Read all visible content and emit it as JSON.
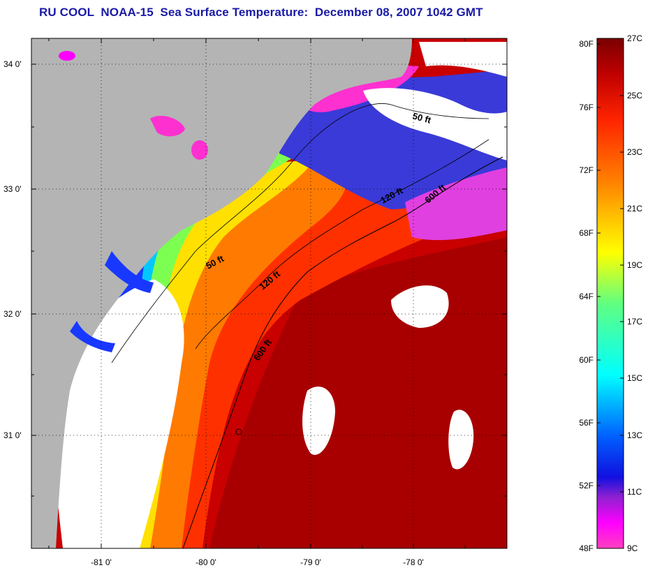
{
  "title": "RU COOL  NOAA-15  Sea Surface Temperature:  December 08, 2007 1042 GMT",
  "map": {
    "lon_labels": [
      "-81 0'",
      "-80 0'",
      "-79 0'",
      "-78 0'"
    ],
    "lat_labels": [
      "34 0'",
      "33 0'",
      "32 0'",
      "31 0'"
    ],
    "contours": [
      "50 ft",
      "120 ft",
      "600 ft",
      "50 ft",
      "120 ft",
      "600 ft"
    ],
    "land_color": "#b4b4b4",
    "cloud_color": "#ffffff"
  },
  "colorbar": {
    "f_labels": [
      "80F",
      "76F",
      "72F",
      "68F",
      "64F",
      "60F",
      "56F",
      "52F",
      "48F"
    ],
    "c_labels": [
      "27C",
      "25C",
      "23C",
      "21C",
      "19C",
      "17C",
      "15C",
      "13C",
      "11C",
      "9C"
    ],
    "colors": [
      "#7a0000",
      "#c00000",
      "#ff2400",
      "#ff8000",
      "#ffff00",
      "#80ff60",
      "#00ffff",
      "#0060ff",
      "#1010e0",
      "#9020d0",
      "#ff00ff",
      "#ff40c0"
    ]
  }
}
